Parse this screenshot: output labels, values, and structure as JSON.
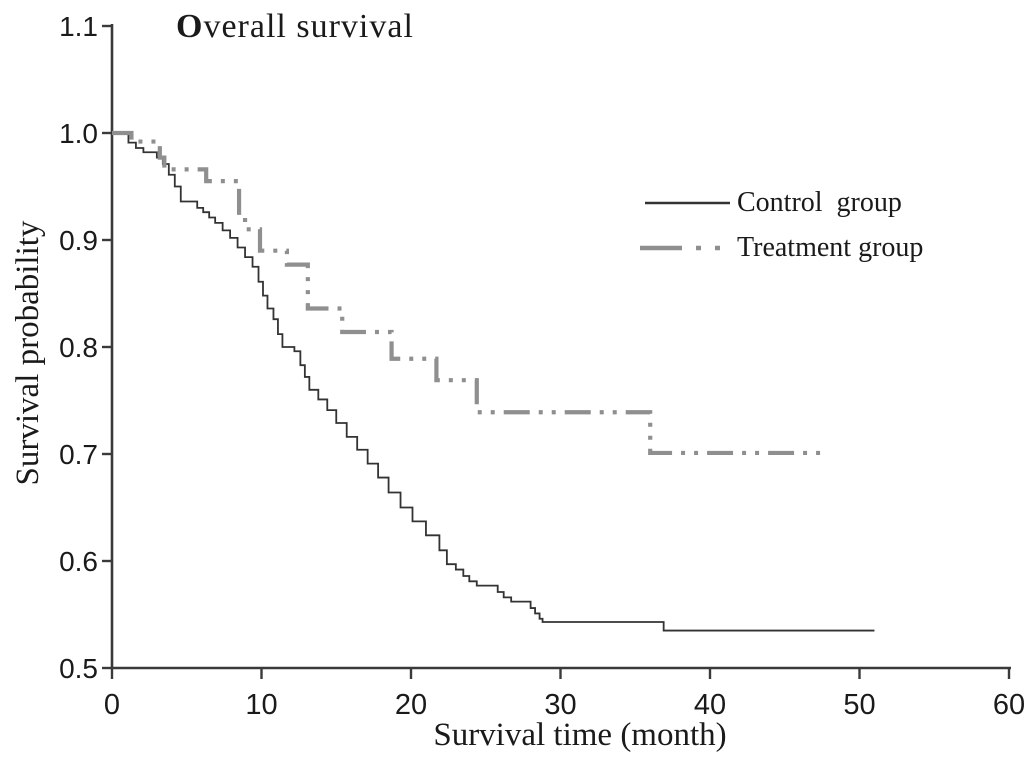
{
  "title": "Overall survival",
  "axes": {
    "x": {
      "label": "Survival time (month)",
      "ticks": [
        "0",
        "10",
        "20",
        "30",
        "40",
        "50",
        "60"
      ],
      "range": [
        0,
        60
      ]
    },
    "y": {
      "label": "Survival probability",
      "ticks": [
        "1.1",
        "1.0",
        "0.9",
        "0.8",
        "0.7",
        "0.6",
        "0.5"
      ],
      "range": [
        0.5,
        1.1
      ]
    }
  },
  "legend": {
    "items": [
      {
        "label": "Control group"
      },
      {
        "label": "Treatment group"
      }
    ]
  },
  "colors": {
    "control": "#333333",
    "treatment": "#8f8f8f",
    "axis": "#3a3a3a",
    "text": "#1a1a1a"
  },
  "chart_data": {
    "type": "line",
    "subtype": "kaplan-meier-step",
    "title": "Overall survival",
    "xlabel": "Survival time (month)",
    "ylabel": "Survival probability",
    "xlim": [
      0,
      60
    ],
    "ylim": [
      0.5,
      1.1
    ],
    "grid": false,
    "legend_position": "upper-right-inside",
    "series": [
      {
        "name": "Control group",
        "style": "solid",
        "color": "#333333",
        "width": 1.8,
        "dash": "",
        "points": [
          [
            0,
            1.0
          ],
          [
            1.1,
            0.991
          ],
          [
            1.6,
            0.986
          ],
          [
            2.1,
            0.982
          ],
          [
            3.0,
            0.977
          ],
          [
            3.4,
            0.971
          ],
          [
            3.8,
            0.961
          ],
          [
            4.2,
            0.95
          ],
          [
            4.6,
            0.936
          ],
          [
            5.7,
            0.93
          ],
          [
            6.1,
            0.926
          ],
          [
            6.5,
            0.921
          ],
          [
            6.9,
            0.916
          ],
          [
            7.4,
            0.909
          ],
          [
            7.9,
            0.902
          ],
          [
            8.4,
            0.893
          ],
          [
            8.9,
            0.884
          ],
          [
            9.4,
            0.875
          ],
          [
            9.8,
            0.861
          ],
          [
            10.1,
            0.848
          ],
          [
            10.4,
            0.836
          ],
          [
            10.8,
            0.826
          ],
          [
            11.1,
            0.812
          ],
          [
            11.4,
            0.8
          ],
          [
            12.2,
            0.796
          ],
          [
            12.6,
            0.783
          ],
          [
            12.9,
            0.772
          ],
          [
            13.2,
            0.76
          ],
          [
            13.8,
            0.751
          ],
          [
            14.4,
            0.741
          ],
          [
            15.0,
            0.729
          ],
          [
            15.7,
            0.716
          ],
          [
            16.4,
            0.704
          ],
          [
            17.1,
            0.691
          ],
          [
            17.8,
            0.678
          ],
          [
            18.5,
            0.664
          ],
          [
            19.3,
            0.65
          ],
          [
            20.1,
            0.637
          ],
          [
            21.0,
            0.624
          ],
          [
            21.9,
            0.61
          ],
          [
            22.4,
            0.597
          ],
          [
            23.0,
            0.592
          ],
          [
            23.5,
            0.586
          ],
          [
            23.9,
            0.581
          ],
          [
            24.4,
            0.577
          ],
          [
            25.8,
            0.571
          ],
          [
            26.2,
            0.566
          ],
          [
            26.7,
            0.562
          ],
          [
            28.0,
            0.556
          ],
          [
            28.3,
            0.551
          ],
          [
            28.6,
            0.546
          ],
          [
            28.8,
            0.543
          ],
          [
            36.9,
            0.535
          ],
          [
            51.0,
            0.535
          ]
        ]
      },
      {
        "name": "Treatment group",
        "style": "dash-dot-dot",
        "color": "#8f8f8f",
        "width": 4.2,
        "dash": "26 9 4 9 4 9",
        "points": [
          [
            0,
            1.0
          ],
          [
            1.3,
            0.992
          ],
          [
            3.2,
            0.977
          ],
          [
            3.5,
            0.966
          ],
          [
            6.3,
            0.955
          ],
          [
            8.5,
            0.921
          ],
          [
            8.9,
            0.91
          ],
          [
            9.9,
            0.89
          ],
          [
            11.7,
            0.877
          ],
          [
            13.1,
            0.836
          ],
          [
            15.4,
            0.814
          ],
          [
            18.7,
            0.789
          ],
          [
            21.7,
            0.769
          ],
          [
            24.4,
            0.739
          ],
          [
            36.0,
            0.701
          ],
          [
            47.4,
            0.701
          ]
        ]
      }
    ]
  }
}
